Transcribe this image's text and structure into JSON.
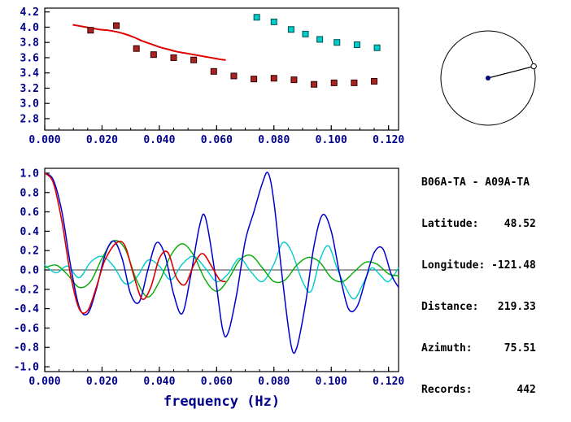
{
  "colors": {
    "background": "#ffffff",
    "frame": "#000000",
    "axis_text": "#00008b",
    "info_text": "#000000",
    "center_dot": "#000080",
    "red_curve": "#dd0000",
    "blue_curve": "#0000cc",
    "green_curve": "#00aa00",
    "cyan_curve": "#00cccc",
    "red_marker": "#aa2222",
    "cyan_marker": "#00cccc"
  },
  "info_panel": {
    "lines": [
      "B06A-TA - A09A-TA",
      "Latitude:    48.52",
      "Longitude: -121.48",
      "Distance:   219.33",
      "Azimuth:     75.51",
      "Records:       442"
    ]
  },
  "azimuth_diagram": {
    "azimuth_deg": 75.51
  },
  "chart_data": [
    {
      "id": "dispersion",
      "type": "scatter",
      "title": "",
      "xlabel": "",
      "ylabel": "",
      "xlim": [
        0,
        0.1235
      ],
      "ylim": [
        2.65,
        4.25
      ],
      "xticks": [
        0,
        0.02,
        0.04,
        0.06,
        0.08,
        0.1,
        0.12
      ],
      "xtick_labels": [
        "0.000",
        "0.020",
        "0.040",
        "0.060",
        "0.080",
        "0.100",
        "0.120"
      ],
      "yticks": [
        2.8,
        3.0,
        3.2,
        3.4,
        3.6,
        3.8,
        4.0,
        4.2
      ],
      "ytick_labels": [
        "2.8",
        "3.0",
        "3.2",
        "3.4",
        "3.6",
        "3.8",
        "4.0",
        "4.2"
      ],
      "xminor_step": 0.005,
      "grid": false,
      "series": [
        {
          "name": "reference-dispersion-line",
          "kind": "line",
          "color": "#dd0000",
          "width": 2,
          "points": [
            [
              0.01,
              4.03
            ],
            [
              0.013,
              4.01
            ],
            [
              0.016,
              3.99
            ],
            [
              0.019,
              3.97
            ],
            [
              0.022,
              3.96
            ],
            [
              0.025,
              3.94
            ],
            [
              0.028,
              3.91
            ],
            [
              0.031,
              3.87
            ],
            [
              0.034,
              3.82
            ],
            [
              0.037,
              3.78
            ],
            [
              0.04,
              3.74
            ],
            [
              0.043,
              3.71
            ],
            [
              0.046,
              3.68
            ],
            [
              0.049,
              3.66
            ],
            [
              0.052,
              3.64
            ],
            [
              0.055,
              3.62
            ],
            [
              0.058,
              3.6
            ],
            [
              0.061,
              3.58
            ],
            [
              0.063,
              3.57
            ]
          ]
        },
        {
          "name": "group-velocity-picks-red",
          "kind": "scatter",
          "color": "#aa2222",
          "edge": "#300000",
          "points": [
            [
              0.016,
              3.96
            ],
            [
              0.025,
              4.02
            ],
            [
              0.032,
              3.72
            ],
            [
              0.038,
              3.64
            ],
            [
              0.045,
              3.6
            ],
            [
              0.052,
              3.57
            ],
            [
              0.059,
              3.42
            ],
            [
              0.066,
              3.36
            ],
            [
              0.073,
              3.32
            ],
            [
              0.08,
              3.33
            ],
            [
              0.087,
              3.31
            ],
            [
              0.094,
              3.25
            ],
            [
              0.101,
              3.27
            ],
            [
              0.108,
              3.27
            ],
            [
              0.115,
              3.29
            ]
          ]
        },
        {
          "name": "phase-velocity-picks-cyan",
          "kind": "scatter",
          "color": "#00cccc",
          "edge": "#004f4f",
          "points": [
            [
              0.074,
              4.13
            ],
            [
              0.08,
              4.07
            ],
            [
              0.086,
              3.97
            ],
            [
              0.091,
              3.91
            ],
            [
              0.096,
              3.84
            ],
            [
              0.102,
              3.8
            ],
            [
              0.109,
              3.77
            ],
            [
              0.116,
              3.73
            ]
          ]
        }
      ]
    },
    {
      "id": "waveform",
      "type": "line",
      "title": "",
      "xlabel": "frequency (Hz)",
      "ylabel": "",
      "xlim": [
        0,
        0.1235
      ],
      "ylim": [
        -1.05,
        1.05
      ],
      "xticks": [
        0,
        0.02,
        0.04,
        0.06,
        0.08,
        0.1,
        0.12
      ],
      "xtick_labels": [
        "0.000",
        "0.020",
        "0.040",
        "0.060",
        "0.080",
        "0.100",
        "0.120"
      ],
      "yticks": [
        -1.0,
        -0.8,
        -0.6,
        -0.4,
        -0.2,
        0.0,
        0.2,
        0.4,
        0.6,
        0.8,
        1.0
      ],
      "ytick_labels": [
        "-1.0",
        "-0.8",
        "-0.6",
        "-0.4",
        "-0.2",
        "0.0",
        "0.2",
        "0.4",
        "0.6",
        "0.8",
        "1.0"
      ],
      "xminor_step": 0.005,
      "zero_line": true,
      "grid": false,
      "series": [
        {
          "name": "cyan-trace",
          "kind": "line",
          "color": "#00cccc",
          "width": 1.4,
          "points": [
            [
              0.0,
              0.05
            ],
            [
              0.004,
              -0.03
            ],
            [
              0.008,
              0.04
            ],
            [
              0.012,
              -0.08
            ],
            [
              0.016,
              0.08
            ],
            [
              0.02,
              0.14
            ],
            [
              0.024,
              0.04
            ],
            [
              0.028,
              -0.14
            ],
            [
              0.032,
              -0.08
            ],
            [
              0.036,
              0.1
            ],
            [
              0.04,
              0.04
            ],
            [
              0.044,
              -0.1
            ],
            [
              0.048,
              0.06
            ],
            [
              0.052,
              0.14
            ],
            [
              0.056,
              0.02
            ],
            [
              0.06,
              -0.12
            ],
            [
              0.064,
              -0.04
            ],
            [
              0.068,
              0.12
            ],
            [
              0.072,
              -0.02
            ],
            [
              0.076,
              -0.12
            ],
            [
              0.08,
              0.06
            ],
            [
              0.083,
              0.28
            ],
            [
              0.086,
              0.2
            ],
            [
              0.09,
              -0.12
            ],
            [
              0.093,
              -0.22
            ],
            [
              0.096,
              0.1
            ],
            [
              0.099,
              0.25
            ],
            [
              0.102,
              0.02
            ],
            [
              0.105,
              -0.18
            ],
            [
              0.108,
              -0.3
            ],
            [
              0.111,
              -0.15
            ],
            [
              0.114,
              0.02
            ],
            [
              0.117,
              -0.05
            ],
            [
              0.12,
              -0.12
            ],
            [
              0.1235,
              0.02
            ]
          ]
        },
        {
          "name": "green-trace",
          "kind": "line",
          "color": "#00aa00",
          "width": 1.4,
          "points": [
            [
              0.0,
              0.02
            ],
            [
              0.004,
              0.05
            ],
            [
              0.008,
              -0.05
            ],
            [
              0.012,
              -0.18
            ],
            [
              0.016,
              -0.12
            ],
            [
              0.02,
              0.12
            ],
            [
              0.024,
              0.3
            ],
            [
              0.028,
              0.22
            ],
            [
              0.032,
              -0.1
            ],
            [
              0.036,
              -0.28
            ],
            [
              0.04,
              -0.12
            ],
            [
              0.044,
              0.15
            ],
            [
              0.048,
              0.27
            ],
            [
              0.052,
              0.15
            ],
            [
              0.056,
              -0.1
            ],
            [
              0.06,
              -0.22
            ],
            [
              0.064,
              -0.1
            ],
            [
              0.068,
              0.1
            ],
            [
              0.072,
              0.15
            ],
            [
              0.076,
              0.02
            ],
            [
              0.08,
              -0.12
            ],
            [
              0.084,
              -0.1
            ],
            [
              0.088,
              0.05
            ],
            [
              0.092,
              0.13
            ],
            [
              0.096,
              0.08
            ],
            [
              0.1,
              -0.08
            ],
            [
              0.104,
              -0.12
            ],
            [
              0.108,
              -0.02
            ],
            [
              0.112,
              0.08
            ],
            [
              0.116,
              0.06
            ],
            [
              0.12,
              -0.04
            ],
            [
              0.1235,
              -0.06
            ]
          ]
        },
        {
          "name": "blue-trace",
          "kind": "line",
          "color": "#0000cc",
          "width": 1.5,
          "points": [
            [
              0.0,
              1.0
            ],
            [
              0.003,
              0.93
            ],
            [
              0.006,
              0.6
            ],
            [
              0.009,
              0.05
            ],
            [
              0.012,
              -0.38
            ],
            [
              0.015,
              -0.45
            ],
            [
              0.018,
              -0.2
            ],
            [
              0.021,
              0.15
            ],
            [
              0.024,
              0.3
            ],
            [
              0.027,
              0.12
            ],
            [
              0.03,
              -0.25
            ],
            [
              0.033,
              -0.33
            ],
            [
              0.036,
              0.0
            ],
            [
              0.039,
              0.28
            ],
            [
              0.042,
              0.15
            ],
            [
              0.045,
              -0.25
            ],
            [
              0.048,
              -0.45
            ],
            [
              0.051,
              -0.05
            ],
            [
              0.054,
              0.45
            ],
            [
              0.056,
              0.55
            ],
            [
              0.059,
              0.05
            ],
            [
              0.062,
              -0.6
            ],
            [
              0.064,
              -0.65
            ],
            [
              0.067,
              -0.25
            ],
            [
              0.07,
              0.3
            ],
            [
              0.073,
              0.6
            ],
            [
              0.076,
              0.9
            ],
            [
              0.078,
              1.0
            ],
            [
              0.08,
              0.7
            ],
            [
              0.083,
              -0.1
            ],
            [
              0.086,
              -0.78
            ],
            [
              0.088,
              -0.8
            ],
            [
              0.091,
              -0.35
            ],
            [
              0.094,
              0.25
            ],
            [
              0.097,
              0.57
            ],
            [
              0.1,
              0.4
            ],
            [
              0.103,
              -0.05
            ],
            [
              0.106,
              -0.4
            ],
            [
              0.109,
              -0.38
            ],
            [
              0.112,
              -0.1
            ],
            [
              0.115,
              0.18
            ],
            [
              0.118,
              0.22
            ],
            [
              0.121,
              -0.05
            ],
            [
              0.1235,
              -0.18
            ]
          ]
        },
        {
          "name": "red-trace",
          "kind": "line",
          "color": "#dd0000",
          "width": 1.6,
          "points": [
            [
              0.0,
              1.0
            ],
            [
              0.003,
              0.9
            ],
            [
              0.006,
              0.5
            ],
            [
              0.009,
              -0.05
            ],
            [
              0.012,
              -0.4
            ],
            [
              0.015,
              -0.42
            ],
            [
              0.018,
              -0.18
            ],
            [
              0.021,
              0.1
            ],
            [
              0.025,
              0.28
            ],
            [
              0.028,
              0.25
            ],
            [
              0.031,
              -0.05
            ],
            [
              0.034,
              -0.3
            ],
            [
              0.037,
              -0.18
            ],
            [
              0.04,
              0.12
            ],
            [
              0.043,
              0.18
            ],
            [
              0.046,
              -0.08
            ],
            [
              0.049,
              -0.15
            ],
            [
              0.052,
              0.05
            ],
            [
              0.055,
              0.17
            ],
            [
              0.058,
              0.05
            ],
            [
              0.061,
              -0.1
            ],
            [
              0.063,
              -0.12
            ]
          ]
        }
      ]
    }
  ]
}
